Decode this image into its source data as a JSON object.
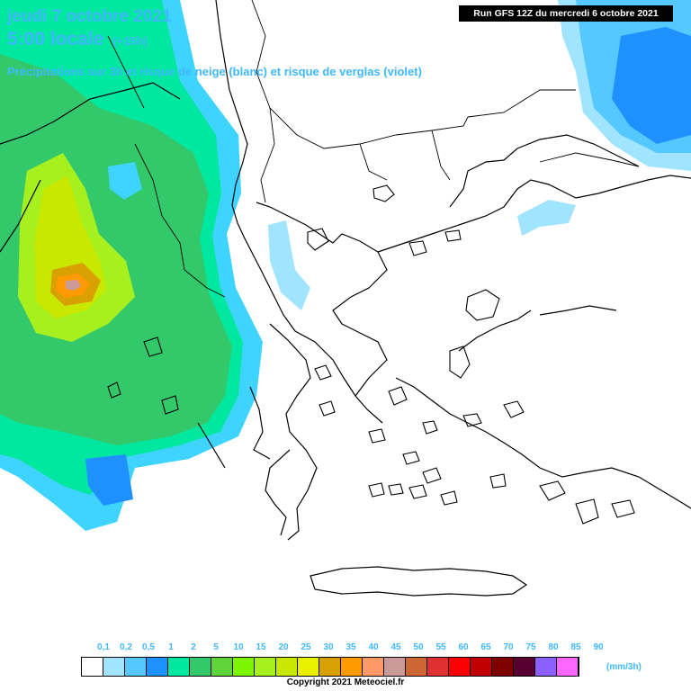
{
  "header": {
    "date": "jeudi 7 octobre 2021",
    "time": "5:00 locale",
    "lead": "(+15h)",
    "subtitle": "Précipitations sur 3h et risque de neige (blanc) et risque de verglas (violet)",
    "run": "Run GFS 12Z du mercredi 6 octobre 2021"
  },
  "legend": {
    "ticks": [
      "0,1",
      "0,2",
      "0,5",
      "1",
      "2",
      "5",
      "10",
      "15",
      "20",
      "25",
      "30",
      "35",
      "40",
      "45",
      "50",
      "55",
      "60",
      "65",
      "70",
      "75",
      "80",
      "85",
      "90"
    ],
    "colors": [
      "#ffffff",
      "#a0e4ff",
      "#55c8ff",
      "#1e90ff",
      "#00e7a0",
      "#33c96b",
      "#5fd43a",
      "#7df400",
      "#a6f020",
      "#c8e800",
      "#e8f000",
      "#d8a000",
      "#ff9a00",
      "#ff9966",
      "#cc9999",
      "#cc6633",
      "#e03030",
      "#ff0000",
      "#c00000",
      "#800000",
      "#5a0030",
      "#8c60ff",
      "#ff66ff"
    ],
    "unit": "(mm/3h)"
  },
  "footer": {
    "copyright": "Copyright 2021 Meteociel.fr"
  }
}
